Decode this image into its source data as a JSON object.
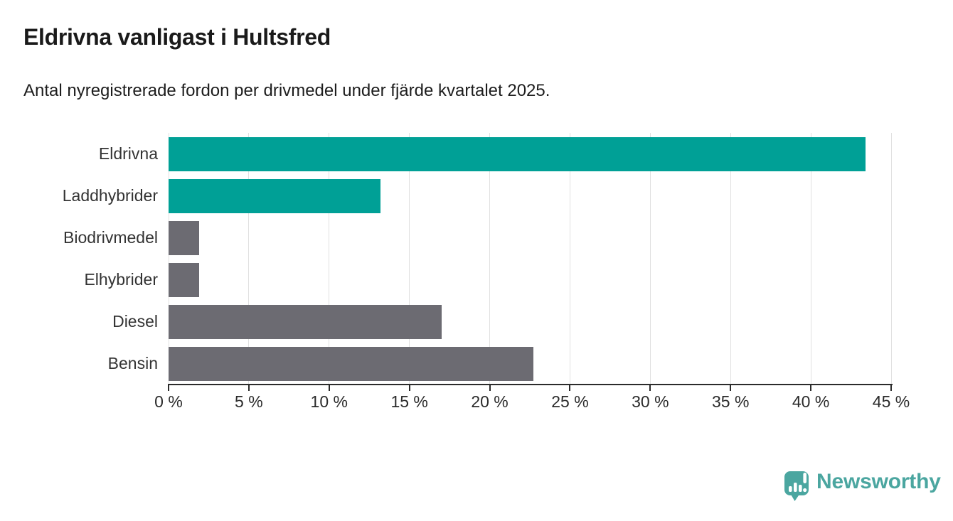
{
  "header": {
    "title": "Eldrivna vanligast i Hultsfred",
    "subtitle": "Antal nyregistrerade fordon per drivmedel under fjärde kvartalet 2025."
  },
  "chart_data": {
    "type": "bar",
    "orientation": "horizontal",
    "title": "Eldrivna vanligast i Hultsfred",
    "subtitle": "Antal nyregistrerade fordon per drivmedel under fjärde kvartalet 2025.",
    "categories": [
      "Eldrivna",
      "Laddhybrider",
      "Biodrivmedel",
      "Elhybrider",
      "Diesel",
      "Bensin"
    ],
    "values": [
      43.4,
      13.2,
      1.9,
      1.9,
      17.0,
      22.7
    ],
    "unit": "%",
    "bar_colors": [
      "#00A096",
      "#00A096",
      "#6C6B72",
      "#6C6B72",
      "#6C6B72",
      "#6C6B72"
    ],
    "xlim": [
      0,
      45
    ],
    "x_ticks": [
      0,
      5,
      10,
      15,
      20,
      25,
      30,
      35,
      40,
      45
    ],
    "x_tick_labels": [
      "0 %",
      "5 %",
      "10 %",
      "15 %",
      "20 %",
      "25 %",
      "30 %",
      "35 %",
      "40 %",
      "45 %"
    ],
    "xlabel": "",
    "ylabel": "",
    "grid": "vertical-only",
    "legend": "none"
  },
  "colors": {
    "accent_teal": "#00A096",
    "neutral_gray": "#6C6B72",
    "gridline": "#E0E0E0",
    "axis": "#2B2B2B",
    "title_text": "#1A1A1A",
    "label_text": "#333333",
    "brand_teal": "#4BA6A0"
  },
  "footer": {
    "brand": "Newsworthy",
    "logo_icon": "bar-chart-speech-bubble-icon"
  }
}
